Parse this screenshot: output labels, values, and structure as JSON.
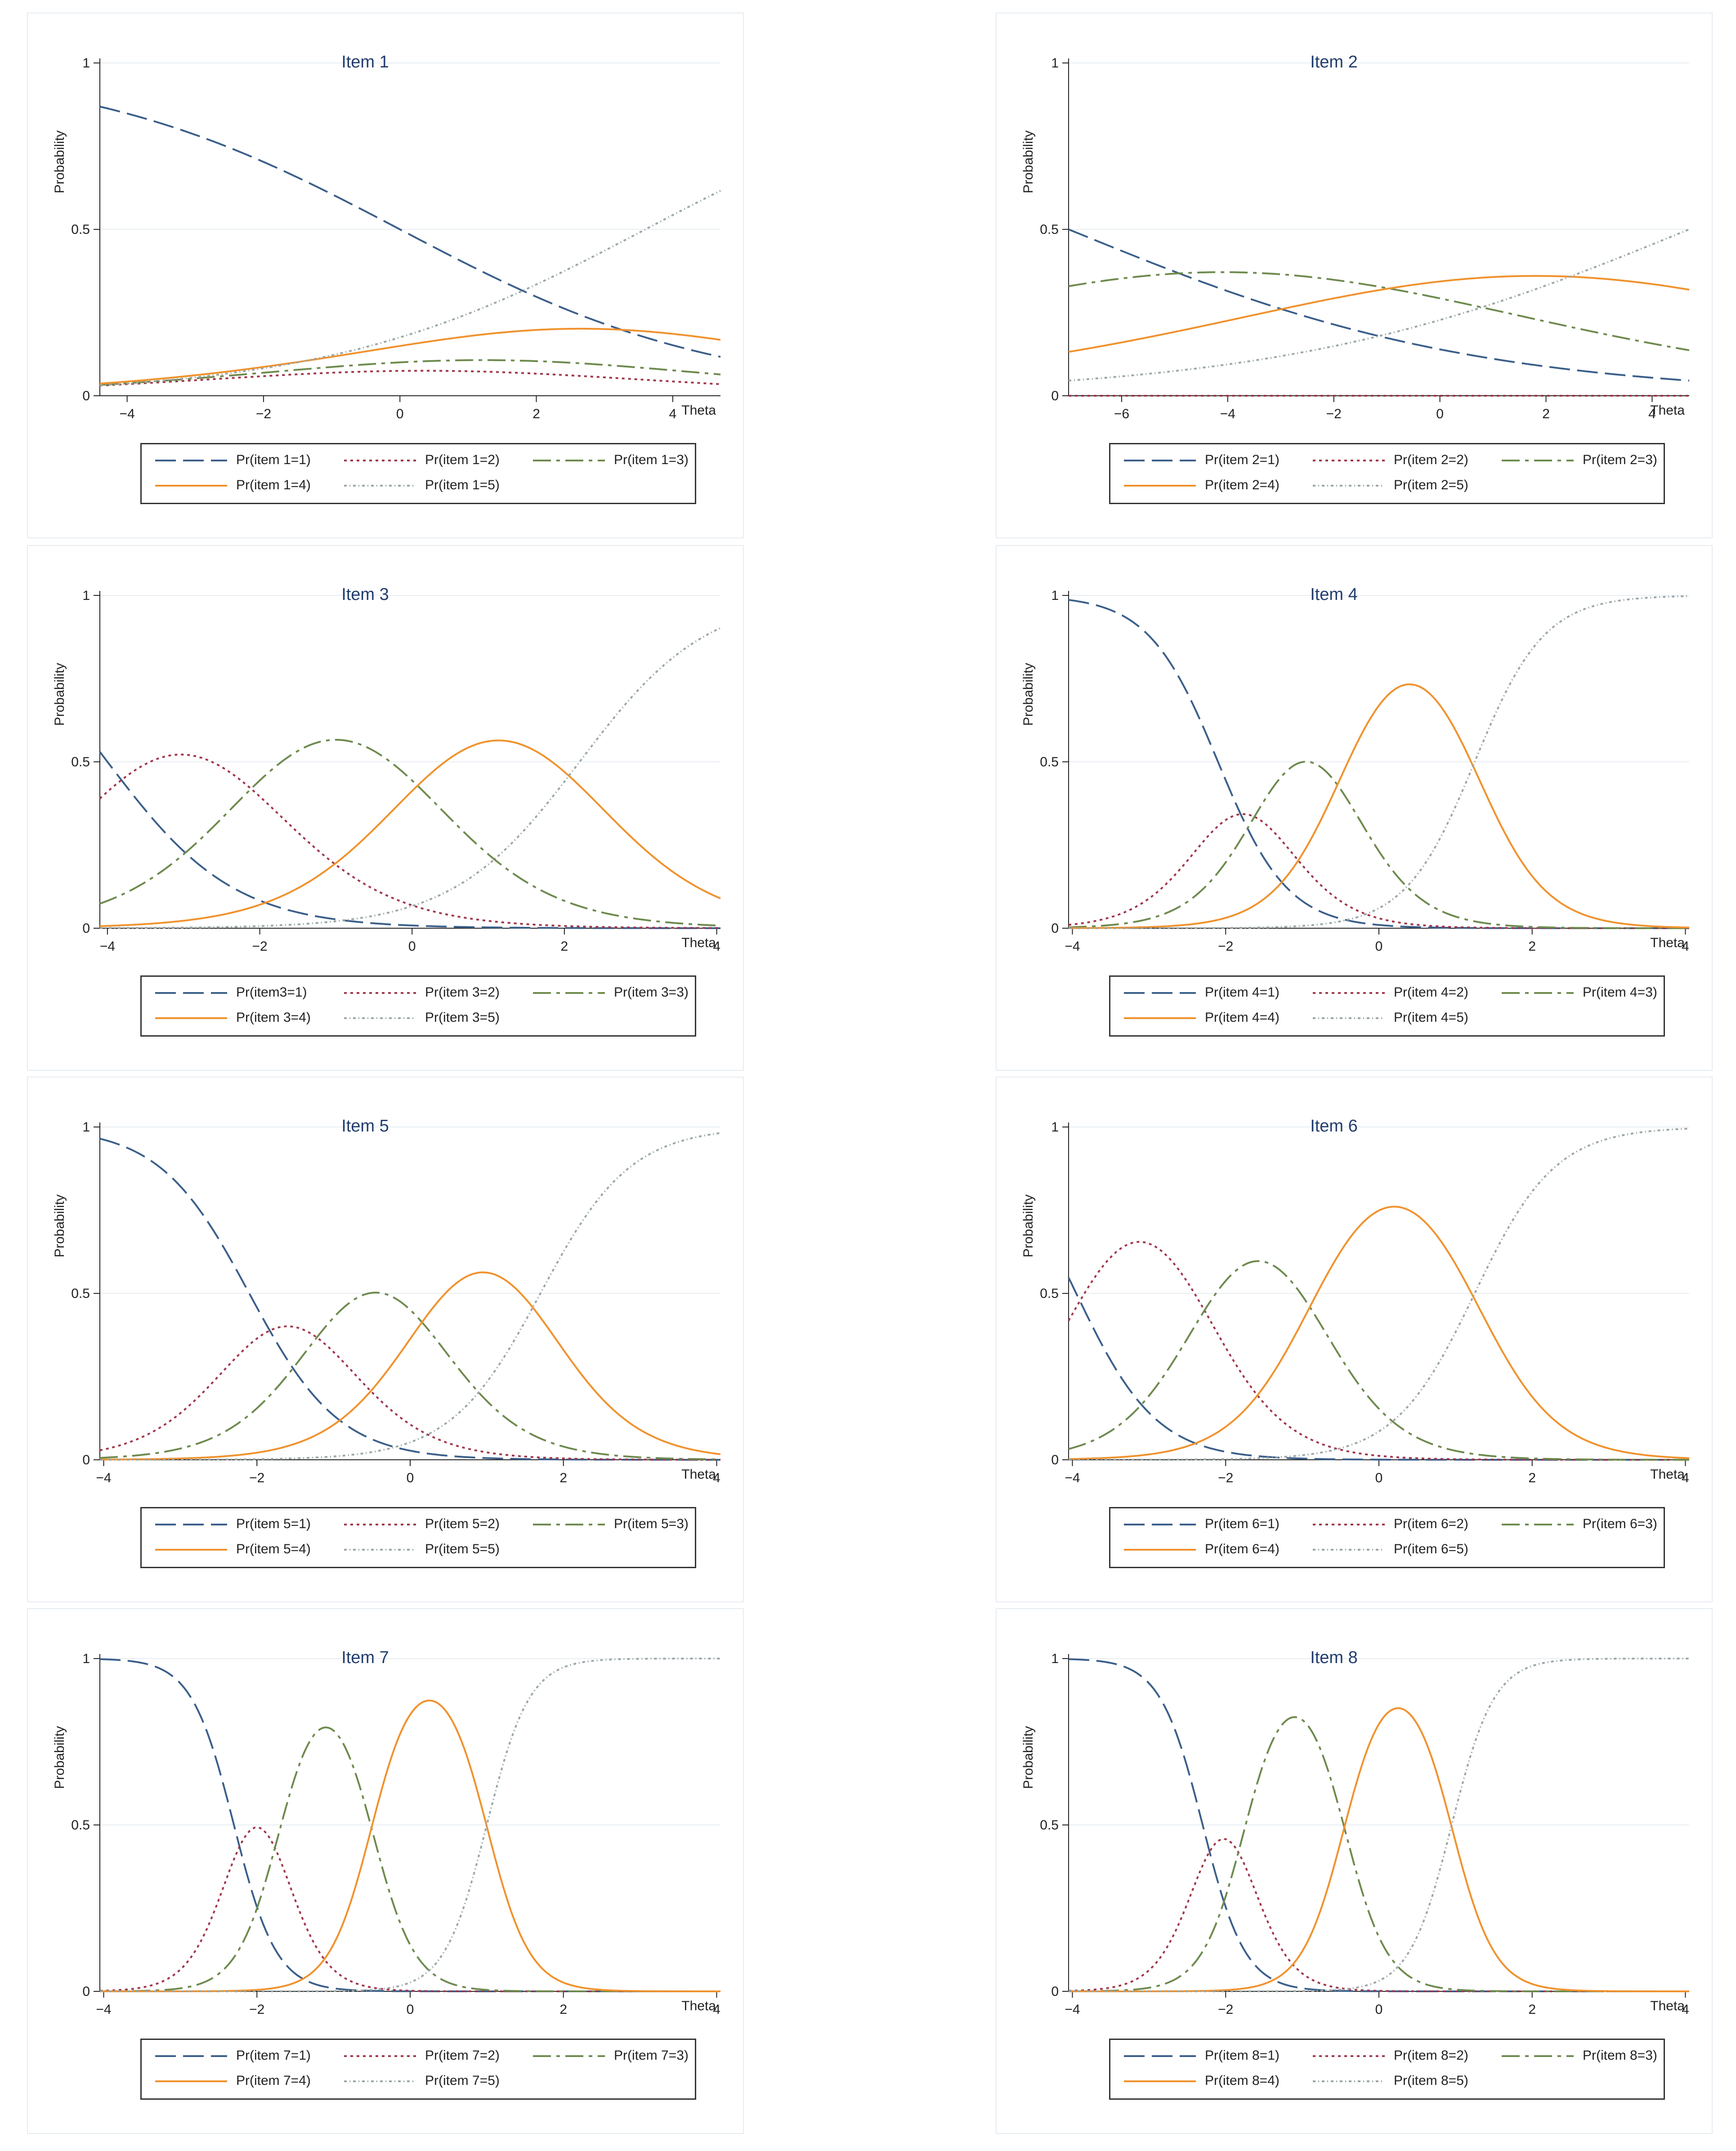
{
  "line_styles": {
    "1": {
      "color": "#3b5f8a",
      "dash": "46 16"
    },
    "2": {
      "color": "#a0354a",
      "dash": "6 8"
    },
    "3": {
      "color": "#6e8a4e",
      "dash": "40 12 8 12"
    },
    "4": {
      "color": "#f0922e",
      "dash": ""
    },
    "5": {
      "color": "#9aa6a6",
      "dash": "6 6 2 6"
    }
  },
  "chart_data": [
    {
      "type": "line",
      "title": "Item 1",
      "ylabel": "Probability",
      "xlabel": "Theta",
      "xlim": [
        -4.4,
        4.7
      ],
      "ylim": [
        0,
        1
      ],
      "xticks": [
        "-4",
        "-2",
        "0",
        "2",
        "4"
      ],
      "yticks": [
        "0",
        "0.5",
        "1"
      ],
      "model": {
        "kind": "grm",
        "a": 0.43,
        "b": [
          0,
          0.7,
          1.7,
          3.6
        ]
      },
      "series": [
        {
          "name": "Pr(item 1=1)",
          "category": 1
        },
        {
          "name": "Pr(item 1=2)",
          "category": 2
        },
        {
          "name": "Pr(item 1=3)",
          "category": 3
        },
        {
          "name": "Pr(item 1=4)",
          "category": 4
        },
        {
          "name": "Pr(item 1=5)",
          "category": 5
        }
      ]
    },
    {
      "type": "line",
      "title": "Item 2",
      "ylabel": "Probability",
      "xlabel": "Theta",
      "xlim": [
        -7,
        4.7
      ],
      "ylim": [
        0,
        1
      ],
      "xticks": [
        "-6",
        "-4",
        "-2",
        "0",
        "2",
        "4"
      ],
      "yticks": [
        "0",
        "0.5",
        "1"
      ],
      "model": {
        "kind": "grm",
        "a": 0.26,
        "b": [
          -7,
          -7.1,
          -1.1,
          4.7
        ]
      },
      "series": [
        {
          "name": "Pr(item 2=1)",
          "category": 1
        },
        {
          "name": "Pr(item 2=2)",
          "category": 2
        },
        {
          "name": "Pr(item 2=3)",
          "category": 3
        },
        {
          "name": "Pr(item 2=4)",
          "category": 4
        },
        {
          "name": "Pr(item 2=5)",
          "category": 5
        }
      ]
    },
    {
      "type": "line",
      "title": "Item 3",
      "ylabel": "Probability",
      "xlabel": "Theta",
      "xlim": [
        -4.1,
        4.05
      ],
      "ylim": [
        0,
        1
      ],
      "xticks": [
        "-4",
        "-2",
        "0",
        "2",
        "4"
      ],
      "yticks": [
        "0",
        "0.5",
        "1"
      ],
      "model": {
        "kind": "grm",
        "a": 1.2,
        "b": [
          -4,
          -2.07,
          0.07,
          2.2
        ]
      },
      "series": [
        {
          "name": "Pr(item3=1)",
          "category": 1
        },
        {
          "name": "Pr(item 3=2)",
          "category": 2
        },
        {
          "name": "Pr(item 3=3)",
          "category": 3
        },
        {
          "name": "Pr(item 3=4)",
          "category": 4
        },
        {
          "name": "Pr(item 3=5)",
          "category": 5
        }
      ]
    },
    {
      "type": "line",
      "title": "Item 4",
      "ylabel": "Probability",
      "xlabel": "Theta",
      "xlim": [
        -4.05,
        4.05
      ],
      "ylim": [
        0,
        1
      ],
      "xticks": [
        "-4",
        "-2",
        "0",
        "2",
        "4"
      ],
      "yticks": [
        "0",
        "0.5",
        "1"
      ],
      "model": {
        "kind": "grm",
        "a": 2.2,
        "b": [
          -2.1,
          -1.45,
          -0.45,
          1.25
        ]
      },
      "series": [
        {
          "name": "Pr(item 4=1)",
          "category": 1
        },
        {
          "name": "Pr(item 4=2)",
          "category": 2
        },
        {
          "name": "Pr(item 4=3)",
          "category": 3
        },
        {
          "name": "Pr(item 4=4)",
          "category": 4
        },
        {
          "name": "Pr(item 4=5)",
          "category": 5
        }
      ]
    },
    {
      "type": "line",
      "title": "Item 5",
      "ylabel": "Probability",
      "xlabel": "Theta",
      "xlim": [
        -4.05,
        4.05
      ],
      "ylim": [
        0,
        1
      ],
      "xticks": [
        "-4",
        "-2",
        "0",
        "2",
        "4"
      ],
      "yticks": [
        "0",
        "0.5",
        "1"
      ],
      "model": {
        "kind": "grm",
        "a": 1.7,
        "b": [
          -2.1,
          -1.1,
          0.2,
          1.7
        ]
      },
      "series": [
        {
          "name": "Pr(item 5=1)",
          "category": 1
        },
        {
          "name": "Pr(item 5=2)",
          "category": 2
        },
        {
          "name": "Pr(item 5=3)",
          "category": 3
        },
        {
          "name": "Pr(item 5=4)",
          "category": 4
        },
        {
          "name": "Pr(item 5=5)",
          "category": 5
        }
      ]
    },
    {
      "type": "line",
      "title": "Item 6",
      "ylabel": "Probability",
      "xlabel": "Theta",
      "xlim": [
        -4.05,
        4.05
      ],
      "ylim": [
        0,
        1
      ],
      "xticks": [
        "-4",
        "-2",
        "0",
        "2",
        "4"
      ],
      "yticks": [
        "0",
        "0.5",
        "1"
      ],
      "model": {
        "kind": "grm",
        "a": 1.9,
        "b": [
          -3.95,
          -2.3,
          -0.85,
          1.25
        ]
      },
      "series": [
        {
          "name": "Pr(item 6=1)",
          "category": 1
        },
        {
          "name": "Pr(item 6=2)",
          "category": 2
        },
        {
          "name": "Pr(item 6=3)",
          "category": 3
        },
        {
          "name": "Pr(item 6=4)",
          "category": 4
        },
        {
          "name": "Pr(item 6=5)",
          "category": 5
        }
      ]
    },
    {
      "type": "line",
      "title": "Item 7",
      "ylabel": "Probability",
      "xlabel": "Theta",
      "xlim": [
        -4.05,
        4.05
      ],
      "ylim": [
        0,
        1
      ],
      "xticks": [
        "-4",
        "-2",
        "0",
        "2",
        "4"
      ],
      "yticks": [
        "0",
        "0.5",
        "1"
      ],
      "model": {
        "kind": "grm",
        "a": 3.6,
        "b": [
          -2.3,
          -1.7,
          -0.5,
          1.0
        ]
      },
      "series": [
        {
          "name": "Pr(item 7=1)",
          "category": 1
        },
        {
          "name": "Pr(item 7=2)",
          "category": 2
        },
        {
          "name": "Pr(item 7=3)",
          "category": 3
        },
        {
          "name": "Pr(item 7=4)",
          "category": 4
        },
        {
          "name": "Pr(item 7=5)",
          "category": 5
        }
      ]
    },
    {
      "type": "line",
      "title": "Item 8",
      "ylabel": "Probability",
      "xlabel": "Theta",
      "xlim": [
        -4.05,
        4.05
      ],
      "ylim": [
        0,
        1
      ],
      "xticks": [
        "-4",
        "-2",
        "0",
        "2",
        "4"
      ],
      "yticks": [
        "0",
        "0.5",
        "1"
      ],
      "model": {
        "kind": "grm",
        "a": 3.6,
        "b": [
          -2.3,
          -1.75,
          -0.45,
          0.95
        ]
      },
      "series": [
        {
          "name": "Pr(item 8=1)",
          "category": 1
        },
        {
          "name": "Pr(item 8=2)",
          "category": 2
        },
        {
          "name": "Pr(item 8=3)",
          "category": 3
        },
        {
          "name": "Pr(item 8=4)",
          "category": 4
        },
        {
          "name": "Pr(item 8=5)",
          "category": 5
        }
      ]
    }
  ]
}
